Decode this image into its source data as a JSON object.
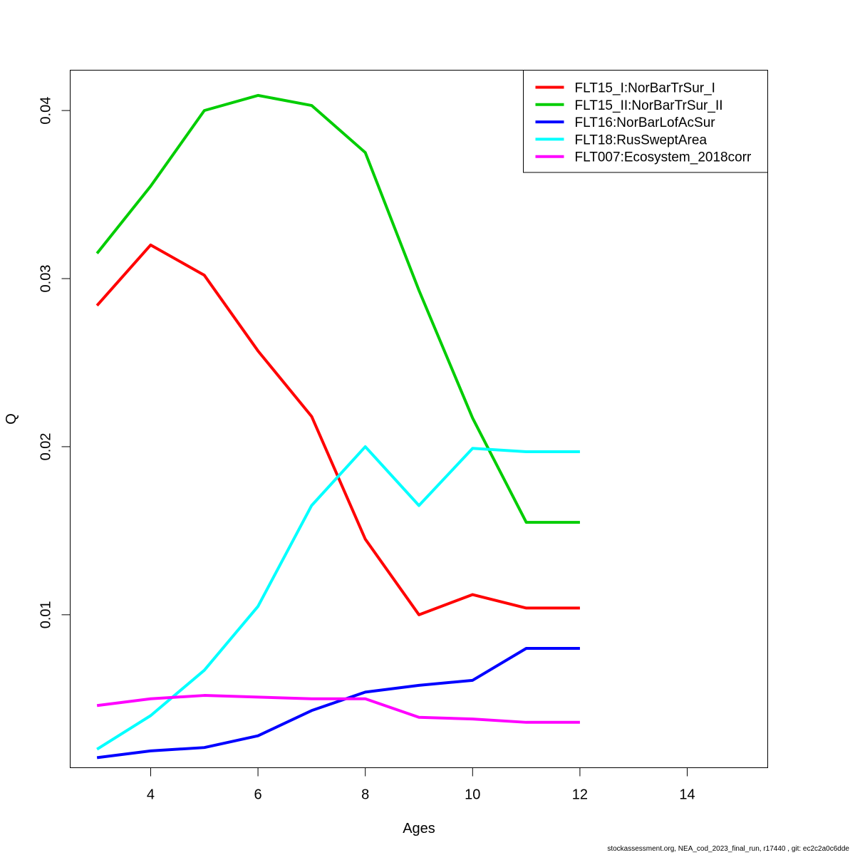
{
  "chart_data": {
    "type": "line",
    "title": "",
    "xlabel": "Ages",
    "ylabel": "Q",
    "xlim": [
      2.5,
      15.5
    ],
    "ylim": [
      0.0009,
      0.0424
    ],
    "x_ticks": [
      4,
      6,
      8,
      10,
      12,
      14
    ],
    "y_ticks": [
      0.01,
      0.02,
      0.03,
      0.04
    ],
    "y_tick_labels": [
      "0.01",
      "0.02",
      "0.03",
      "0.04"
    ],
    "grid": false,
    "legend_position": "top-right",
    "x": [
      3,
      4,
      5,
      6,
      7,
      8,
      9,
      10,
      11,
      12
    ],
    "series": [
      {
        "name": "FLT15_I:NorBarTrSur_I",
        "color": "#ff0000",
        "values": [
          0.0284,
          0.032,
          0.0302,
          0.0257,
          0.0218,
          0.0145,
          0.01,
          0.0112,
          0.0104,
          0.0104
        ]
      },
      {
        "name": "FLT15_II:NorBarTrSur_II",
        "color": "#00cd00",
        "values": [
          0.0315,
          0.0355,
          0.04,
          0.0409,
          0.0403,
          0.0375,
          0.0293,
          0.0217,
          0.0155,
          0.0155
        ]
      },
      {
        "name": "FLT16:NorBarLofAcSur",
        "color": "#0000ff",
        "values": [
          0.0015,
          0.0019,
          0.0021,
          0.0028,
          0.0043,
          0.0054,
          0.0058,
          0.0061,
          0.008,
          0.008
        ]
      },
      {
        "name": "FLT18:RusSweptArea",
        "color": "#00ffff",
        "values": [
          0.002,
          0.004,
          0.0067,
          0.0105,
          0.0165,
          0.02,
          0.0165,
          0.0199,
          0.0197,
          0.0197
        ]
      },
      {
        "name": "FLT007:Ecosystem_2018corr",
        "color": "#ff00ff",
        "values": [
          0.0046,
          0.005,
          0.0052,
          0.0051,
          0.005,
          0.005,
          0.0039,
          0.0038,
          0.0036,
          0.0036
        ]
      }
    ]
  },
  "footer": {
    "text": "stockassessment.org, NEA_cod_2023_final_run, r17440 , git: ec2c2a0c6dde"
  }
}
